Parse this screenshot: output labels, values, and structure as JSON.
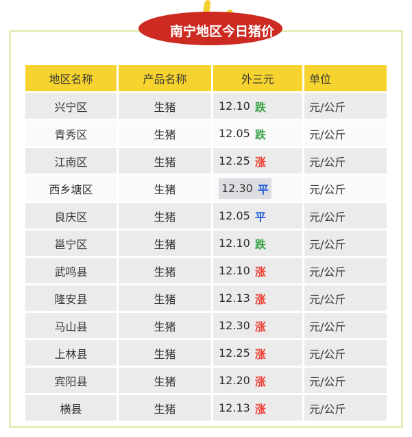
{
  "page": {
    "title": "南宁地区今日猪价"
  },
  "colors": {
    "badge_red": "#cd2a22",
    "accent_yellow": "#f6d32e",
    "spark_yellow": "#f2cf2e",
    "frame_green": "#e7edb8",
    "row_gray": "#ebebeb",
    "up_red": "#ee3f35",
    "down_green": "#3ba449",
    "flat_blue": "#2160d9",
    "selection_gray": "#dcdee1"
  },
  "table": {
    "headers": [
      "地区名称",
      "产品名称",
      "外三元",
      "单位"
    ],
    "rows": [
      {
        "region": "兴宁区",
        "product": "生猪",
        "price": "12.10",
        "trend": "跌",
        "trend_dir": "down",
        "unit": "元/公斤",
        "light": false,
        "selected": false
      },
      {
        "region": "青秀区",
        "product": "生猪",
        "price": "12.05",
        "trend": "跌",
        "trend_dir": "down",
        "unit": "元/公斤",
        "light": true,
        "selected": false
      },
      {
        "region": "江南区",
        "product": "生猪",
        "price": "12.25",
        "trend": "涨",
        "trend_dir": "up",
        "unit": "元/公斤",
        "light": false,
        "selected": false
      },
      {
        "region": "西乡塘区",
        "product": "生猪",
        "price": "12.30",
        "trend": "平",
        "trend_dir": "flat",
        "unit": "元/公斤",
        "light": true,
        "selected": true
      },
      {
        "region": "良庆区",
        "product": "生猪",
        "price": "12.05",
        "trend": "平",
        "trend_dir": "flat",
        "unit": "元/公斤",
        "light": false,
        "selected": false
      },
      {
        "region": "邕宁区",
        "product": "生猪",
        "price": "12.10",
        "trend": "跌",
        "trend_dir": "down",
        "unit": "元/公斤",
        "light": false,
        "selected": false
      },
      {
        "region": "武鸣县",
        "product": "生猪",
        "price": "12.10",
        "trend": "涨",
        "trend_dir": "up",
        "unit": "元/公斤",
        "light": false,
        "selected": false
      },
      {
        "region": "隆安县",
        "product": "生猪",
        "price": "12.13",
        "trend": "涨",
        "trend_dir": "up",
        "unit": "元/公斤",
        "light": false,
        "selected": false
      },
      {
        "region": "马山县",
        "product": "生猪",
        "price": "12.30",
        "trend": "涨",
        "trend_dir": "up",
        "unit": "元/公斤",
        "light": false,
        "selected": false
      },
      {
        "region": "上林县",
        "product": "生猪",
        "price": "12.25",
        "trend": "涨",
        "trend_dir": "up",
        "unit": "元/公斤",
        "light": false,
        "selected": false
      },
      {
        "region": "宾阳县",
        "product": "生猪",
        "price": "12.20",
        "trend": "涨",
        "trend_dir": "up",
        "unit": "元/公斤",
        "light": false,
        "selected": false
      },
      {
        "region": "横县",
        "product": "生猪",
        "price": "12.13",
        "trend": "涨",
        "trend_dir": "up",
        "unit": "元/公斤",
        "light": false,
        "selected": false
      }
    ]
  }
}
